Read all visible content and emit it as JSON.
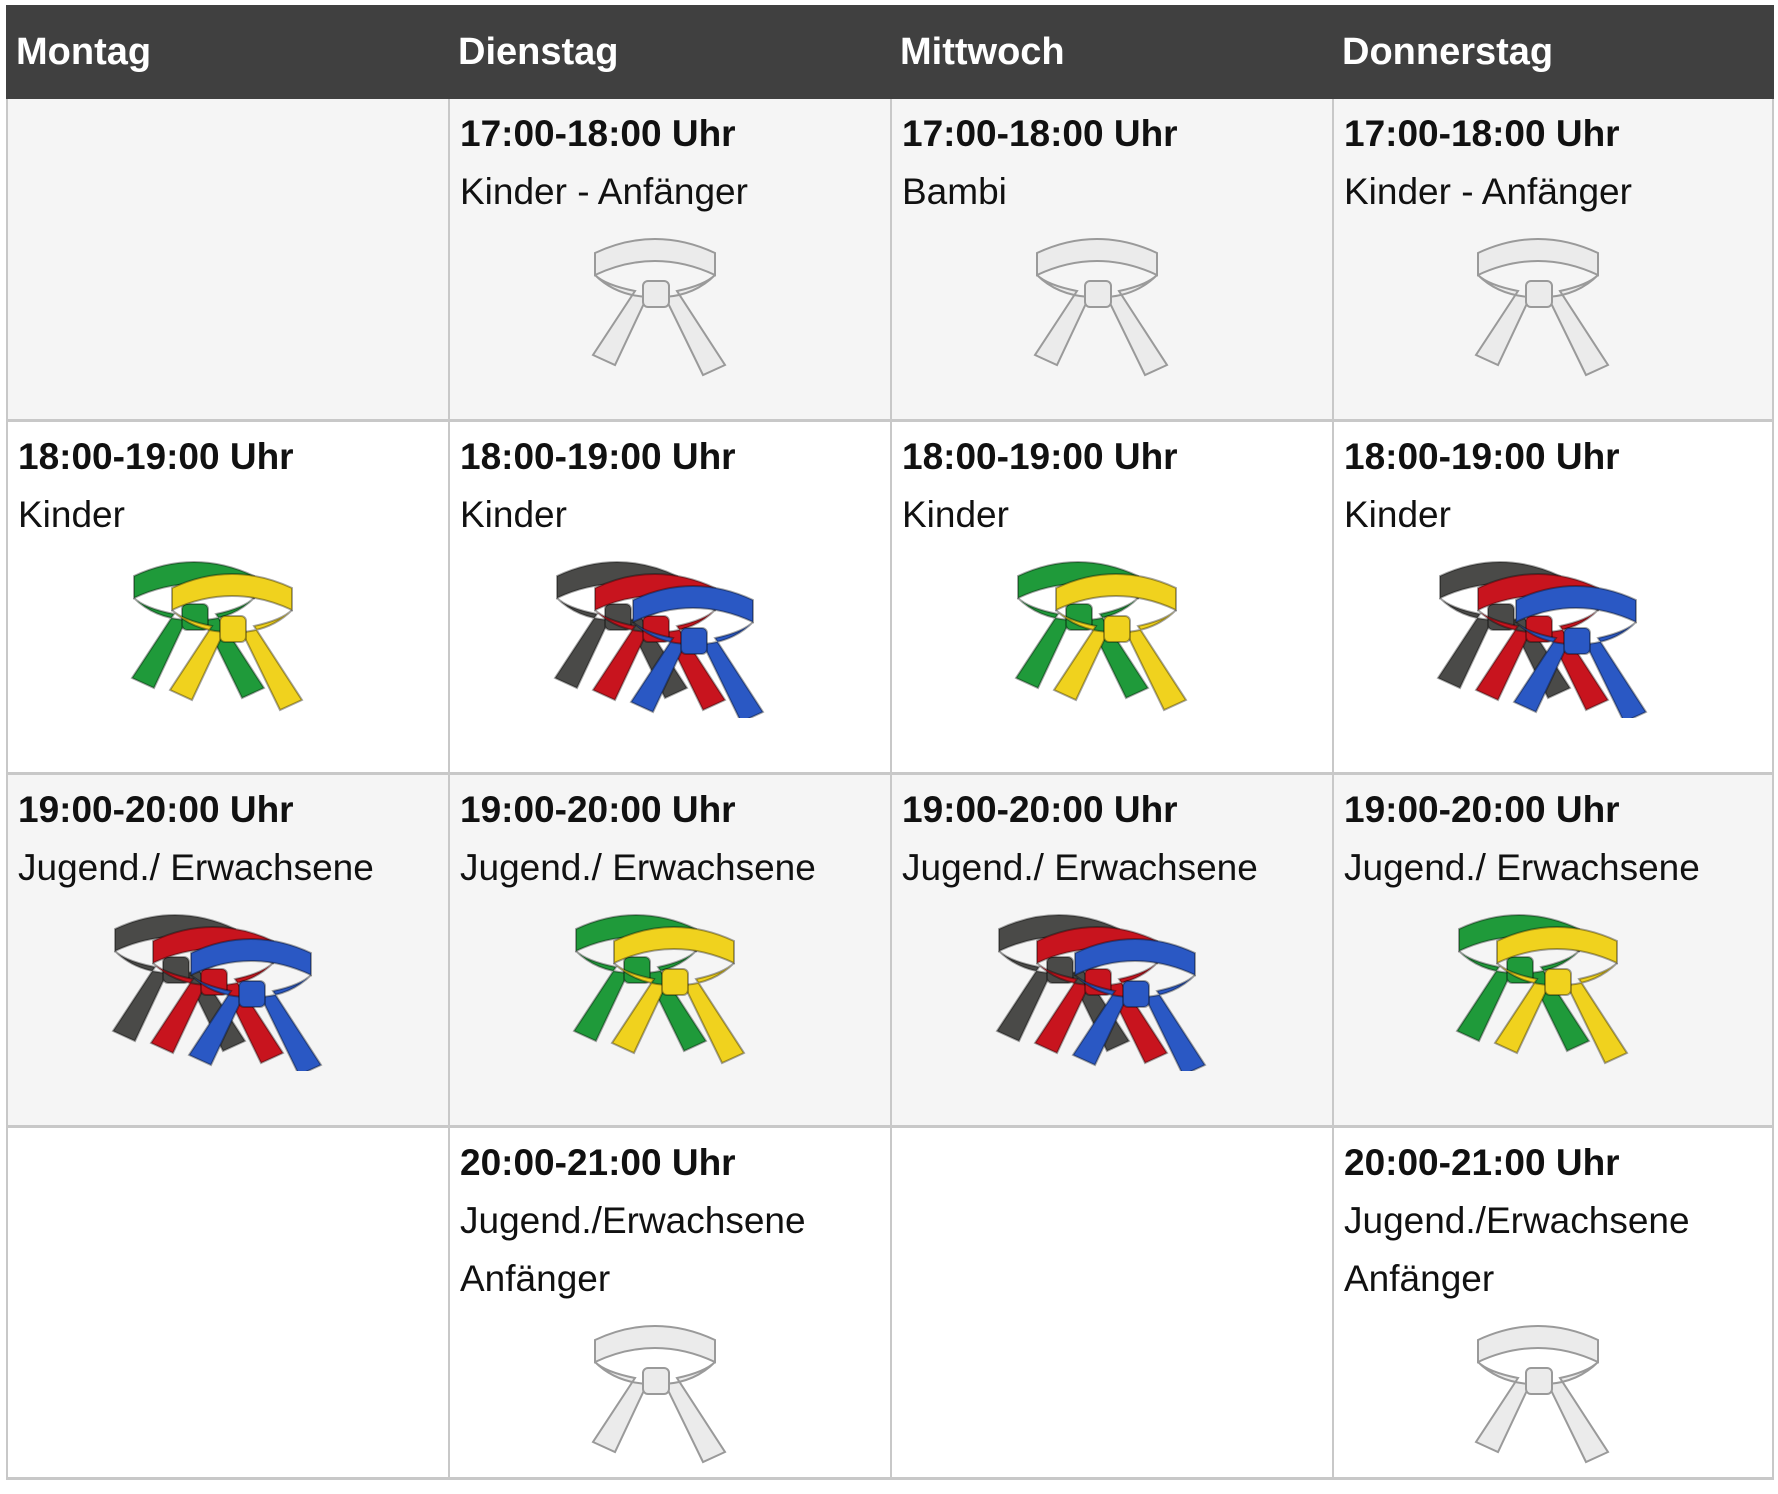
{
  "headers": [
    "Montag",
    "Dienstag",
    "Mittwoch",
    "Donnerstag"
  ],
  "belt_colors": {
    "white": "#ebebeb",
    "green": "#1f9a3a",
    "yellow": "#f0d21e",
    "black": "#4a4a48",
    "red": "#c8141e",
    "blue": "#2a58c4"
  },
  "rows": [
    [
      null,
      {
        "time": "17:00-18:00 Uhr",
        "group": [
          "Kinder - Anfänger"
        ],
        "belts": [
          "white"
        ]
      },
      {
        "time": "17:00-18:00 Uhr",
        "group": [
          "Bambi"
        ],
        "belts": [
          "white"
        ]
      },
      {
        "time": "17:00-18:00 Uhr",
        "group": [
          "Kinder - Anfänger"
        ],
        "belts": [
          "white"
        ]
      }
    ],
    [
      {
        "time": "18:00-19:00 Uhr",
        "group": [
          "Kinder"
        ],
        "belts": [
          "green",
          "yellow"
        ]
      },
      {
        "time": "18:00-19:00 Uhr",
        "group": [
          "Kinder"
        ],
        "belts": [
          "black",
          "red",
          "blue"
        ]
      },
      {
        "time": "18:00-19:00 Uhr",
        "group": [
          "Kinder"
        ],
        "belts": [
          "green",
          "yellow"
        ]
      },
      {
        "time": "18:00-19:00 Uhr",
        "group": [
          "Kinder"
        ],
        "belts": [
          "black",
          "red",
          "blue"
        ]
      }
    ],
    [
      {
        "time": "19:00-20:00 Uhr",
        "group": [
          "Jugend./ Erwachsene"
        ],
        "belts": [
          "black",
          "red",
          "blue"
        ]
      },
      {
        "time": "19:00-20:00 Uhr",
        "group": [
          "Jugend./ Erwachsene"
        ],
        "belts": [
          "green",
          "yellow"
        ]
      },
      {
        "time": "19:00-20:00 Uhr",
        "group": [
          "Jugend./ Erwachsene"
        ],
        "belts": [
          "black",
          "red",
          "blue"
        ]
      },
      {
        "time": "19:00-20:00 Uhr",
        "group": [
          "Jugend./ Erwachsene"
        ],
        "belts": [
          "green",
          "yellow"
        ]
      }
    ],
    [
      null,
      {
        "time": "20:00-21:00 Uhr",
        "group": [
          "Jugend./Erwachsene",
          "Anfänger"
        ],
        "belts": [
          "white"
        ]
      },
      null,
      {
        "time": "20:00-21:00 Uhr",
        "group": [
          "Jugend./Erwachsene",
          "Anfänger"
        ],
        "belts": [
          "white"
        ]
      }
    ]
  ]
}
